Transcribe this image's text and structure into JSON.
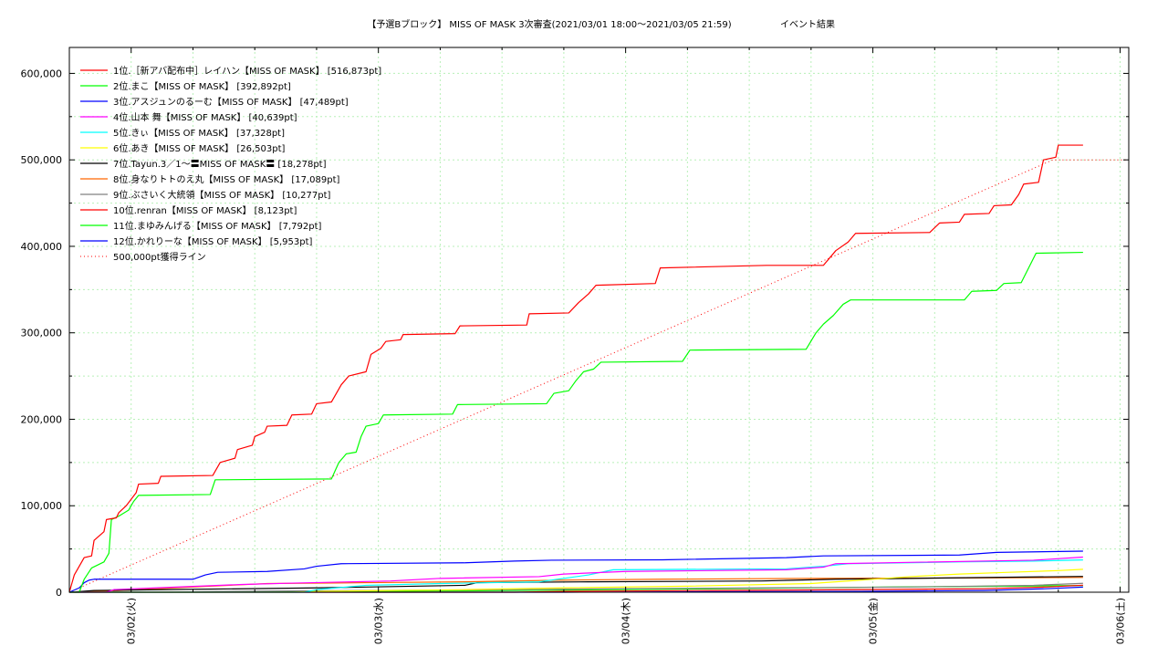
{
  "chart_data": {
    "type": "line",
    "title": "【予選Bブロック】 MISS OF MASK 3次審査(2021/03/01 18:00〜2021/03/05 21:59)",
    "subtitle": "イベント結果",
    "xlabel": "",
    "ylabel": "",
    "x_tick_labels": [
      "03/02(火)",
      "03/03(水)",
      "03/04(木)",
      "03/05(金)",
      "03/06(土)"
    ],
    "x_ticks_days": [
      0.25,
      1.25,
      2.25,
      3.25,
      4.25
    ],
    "xlim_days": [
      0,
      4.285
    ],
    "y_ticks": [
      0,
      100000,
      200000,
      300000,
      400000,
      500000,
      600000
    ],
    "y_tick_labels": [
      "0",
      "100,000",
      "200,000",
      "300,000",
      "400,000",
      "500,000",
      "600,000"
    ],
    "ylim": [
      0,
      630000
    ],
    "grid": true,
    "legend_position": "top-left",
    "series": [
      {
        "name": "1位.［新アバ配布中］レイハン【MISS OF MASK】 [516,873pt]",
        "color": "#ff0000",
        "points": [
          [
            0,
            0
          ],
          [
            0.02,
            20000
          ],
          [
            0.05,
            35000
          ],
          [
            0.06,
            40000
          ],
          [
            0.09,
            42000
          ],
          [
            0.1,
            60000
          ],
          [
            0.14,
            70000
          ],
          [
            0.15,
            84000
          ],
          [
            0.19,
            86000
          ],
          [
            0.2,
            92000
          ],
          [
            0.23,
            100000
          ],
          [
            0.27,
            115000
          ],
          [
            0.28,
            125000
          ],
          [
            0.36,
            126000
          ],
          [
            0.37,
            134000
          ],
          [
            0.58,
            135000
          ],
          [
            0.61,
            150000
          ],
          [
            0.67,
            155000
          ],
          [
            0.68,
            165000
          ],
          [
            0.74,
            170000
          ],
          [
            0.75,
            180000
          ],
          [
            0.79,
            185000
          ],
          [
            0.8,
            192000
          ],
          [
            0.88,
            193000
          ],
          [
            0.9,
            205000
          ],
          [
            0.98,
            206000
          ],
          [
            1.0,
            218000
          ],
          [
            1.06,
            220000
          ],
          [
            1.1,
            240000
          ],
          [
            1.13,
            250000
          ],
          [
            1.2,
            255000
          ],
          [
            1.22,
            275000
          ],
          [
            1.26,
            282000
          ],
          [
            1.28,
            290000
          ],
          [
            1.34,
            292000
          ],
          [
            1.35,
            298000
          ],
          [
            1.56,
            299000
          ],
          [
            1.58,
            308000
          ],
          [
            1.85,
            309000
          ],
          [
            1.86,
            322000
          ],
          [
            2.02,
            323000
          ],
          [
            2.06,
            335000
          ],
          [
            2.1,
            345000
          ],
          [
            2.13,
            355000
          ],
          [
            2.37,
            357000
          ],
          [
            2.39,
            375000
          ],
          [
            2.82,
            378000
          ],
          [
            3.05,
            378000
          ],
          [
            3.1,
            395000
          ],
          [
            3.15,
            405000
          ],
          [
            3.18,
            415000
          ],
          [
            3.48,
            416000
          ],
          [
            3.52,
            427000
          ],
          [
            3.6,
            428000
          ],
          [
            3.62,
            437000
          ],
          [
            3.72,
            438000
          ],
          [
            3.74,
            447000
          ],
          [
            3.81,
            448000
          ],
          [
            3.84,
            460000
          ],
          [
            3.86,
            472000
          ],
          [
            3.92,
            474000
          ],
          [
            3.94,
            500000
          ],
          [
            3.99,
            503000
          ],
          [
            4.0,
            517000
          ],
          [
            4.1,
            517000
          ]
        ]
      },
      {
        "name": "2位.まこ【MISS OF MASK】 [392,892pt]",
        "color": "#00ff00",
        "points": [
          [
            0,
            0
          ],
          [
            0.04,
            0
          ],
          [
            0.06,
            15000
          ],
          [
            0.09,
            28000
          ],
          [
            0.14,
            35000
          ],
          [
            0.16,
            45000
          ],
          [
            0.17,
            84000
          ],
          [
            0.2,
            88000
          ],
          [
            0.24,
            95000
          ],
          [
            0.26,
            105000
          ],
          [
            0.28,
            112000
          ],
          [
            0.57,
            113000
          ],
          [
            0.59,
            130000
          ],
          [
            1.06,
            131000
          ],
          [
            1.09,
            150000
          ],
          [
            1.12,
            160000
          ],
          [
            1.16,
            162000
          ],
          [
            1.18,
            180000
          ],
          [
            1.2,
            192000
          ],
          [
            1.25,
            195000
          ],
          [
            1.27,
            205000
          ],
          [
            1.55,
            206000
          ],
          [
            1.57,
            217000
          ],
          [
            1.93,
            218000
          ],
          [
            1.96,
            230000
          ],
          [
            2.02,
            233000
          ],
          [
            2.05,
            245000
          ],
          [
            2.08,
            255000
          ],
          [
            2.12,
            258000
          ],
          [
            2.15,
            266000
          ],
          [
            2.48,
            267000
          ],
          [
            2.51,
            280000
          ],
          [
            2.98,
            281000
          ],
          [
            3.02,
            300000
          ],
          [
            3.05,
            310000
          ],
          [
            3.09,
            320000
          ],
          [
            3.13,
            333000
          ],
          [
            3.16,
            338000
          ],
          [
            3.62,
            338000
          ],
          [
            3.65,
            348000
          ],
          [
            3.75,
            349000
          ],
          [
            3.78,
            357000
          ],
          [
            3.85,
            358000
          ],
          [
            3.88,
            375000
          ],
          [
            3.91,
            392000
          ],
          [
            4.1,
            393000
          ]
        ]
      },
      {
        "name": "3位.アスジュンのるーむ【MISS OF MASK】 [47,489pt]",
        "color": "#0000ff",
        "points": [
          [
            0,
            0
          ],
          [
            0.04,
            5000
          ],
          [
            0.06,
            11000
          ],
          [
            0.08,
            14000
          ],
          [
            0.1,
            15000
          ],
          [
            0.5,
            15000
          ],
          [
            0.55,
            20000
          ],
          [
            0.6,
            23000
          ],
          [
            0.8,
            24000
          ],
          [
            0.95,
            27000
          ],
          [
            1.0,
            30000
          ],
          [
            1.1,
            33000
          ],
          [
            1.6,
            34000
          ],
          [
            1.8,
            36000
          ],
          [
            1.95,
            37000
          ],
          [
            2.4,
            37500
          ],
          [
            2.9,
            40000
          ],
          [
            3.05,
            42000
          ],
          [
            3.6,
            43000
          ],
          [
            3.75,
            46000
          ],
          [
            4.1,
            47500
          ]
        ]
      },
      {
        "name": "4位.山本 舞【MISS OF MASK】 [40,639pt]",
        "color": "#ff00ff",
        "points": [
          [
            0,
            0
          ],
          [
            0.15,
            0
          ],
          [
            0.18,
            3000
          ],
          [
            0.35,
            5000
          ],
          [
            0.7,
            9000
          ],
          [
            0.9,
            10500
          ],
          [
            1.3,
            13000
          ],
          [
            1.5,
            16000
          ],
          [
            1.9,
            18000
          ],
          [
            2.0,
            21000
          ],
          [
            2.25,
            24000
          ],
          [
            2.9,
            26000
          ],
          [
            3.05,
            29000
          ],
          [
            3.1,
            33000
          ],
          [
            3.9,
            37000
          ],
          [
            4.1,
            40600
          ]
        ]
      },
      {
        "name": "5位.きぃ【MISS OF MASK】 [37,328pt]",
        "color": "#00ffff",
        "points": [
          [
            0,
            0
          ],
          [
            0.95,
            0
          ],
          [
            1.0,
            3000
          ],
          [
            1.2,
            8000
          ],
          [
            1.5,
            10000
          ],
          [
            1.9,
            12000
          ],
          [
            2.1,
            20000
          ],
          [
            2.2,
            26000
          ],
          [
            2.9,
            27000
          ],
          [
            3.05,
            30000
          ],
          [
            3.15,
            33000
          ],
          [
            3.6,
            35000
          ],
          [
            3.9,
            36000
          ],
          [
            4.1,
            37300
          ]
        ]
      },
      {
        "name": "6位.あき【MISS OF MASK】 [26,503pt]",
        "color": "#ffff00",
        "points": [
          [
            0,
            0
          ],
          [
            0.9,
            0
          ],
          [
            1.0,
            1000
          ],
          [
            1.6,
            3000
          ],
          [
            2.0,
            5000
          ],
          [
            2.5,
            7000
          ],
          [
            3.0,
            10000
          ],
          [
            3.2,
            14000
          ],
          [
            3.4,
            18000
          ],
          [
            3.6,
            21000
          ],
          [
            3.8,
            23000
          ],
          [
            4.0,
            25000
          ],
          [
            4.1,
            26500
          ]
        ]
      },
      {
        "name": "7位.Tayun.3／1〜〓MISS OF MASK〓 [18,278pt]",
        "color": "#000000",
        "points": [
          [
            0,
            0
          ],
          [
            0.05,
            1000
          ],
          [
            0.1,
            2000
          ],
          [
            0.4,
            3000
          ],
          [
            1.0,
            5000
          ],
          [
            1.6,
            8000
          ],
          [
            1.65,
            11000
          ],
          [
            2.1,
            12000
          ],
          [
            2.8,
            13000
          ],
          [
            3.1,
            15000
          ],
          [
            3.4,
            16000
          ],
          [
            3.7,
            17000
          ],
          [
            4.1,
            18278
          ]
        ]
      },
      {
        "name": "8位.身なりトトのえ丸【MISS OF MASK】 [17,089pt]",
        "color": "#ff6600",
        "points": [
          [
            0,
            0
          ],
          [
            0.2,
            2000
          ],
          [
            0.5,
            6000
          ],
          [
            0.8,
            10000
          ],
          [
            1.2,
            11000
          ],
          [
            1.6,
            12000
          ],
          [
            2.0,
            14000
          ],
          [
            2.4,
            15000
          ],
          [
            3.0,
            16000
          ],
          [
            3.6,
            16500
          ],
          [
            4.1,
            17089
          ]
        ]
      },
      {
        "name": "9位.ぶさいく大統領【MISS OF MASK】 [10,277pt]",
        "color": "#808080",
        "points": [
          [
            0,
            0
          ],
          [
            0.4,
            0
          ],
          [
            0.6,
            1000
          ],
          [
            1.2,
            2000
          ],
          [
            1.8,
            3000
          ],
          [
            2.2,
            4000
          ],
          [
            2.8,
            5000
          ],
          [
            3.4,
            6000
          ],
          [
            3.9,
            8000
          ],
          [
            4.1,
            10277
          ]
        ]
      },
      {
        "name": "10位.renran【MISS OF MASK】 [8,123pt]",
        "color": "#ff0000",
        "points": [
          [
            0,
            0
          ],
          [
            1.8,
            0
          ],
          [
            2.0,
            1000
          ],
          [
            2.6,
            2000
          ],
          [
            3.2,
            3000
          ],
          [
            3.7,
            4000
          ],
          [
            3.95,
            6000
          ],
          [
            4.1,
            8123
          ]
        ]
      },
      {
        "name": "11位.まゆみんげる【MISS OF MASK】 [7,792pt]",
        "color": "#00ff00",
        "points": [
          [
            0,
            0
          ],
          [
            0.5,
            0
          ],
          [
            1.0,
            500
          ],
          [
            1.6,
            1500
          ],
          [
            2.2,
            3000
          ],
          [
            2.8,
            4500
          ],
          [
            3.3,
            6000
          ],
          [
            3.8,
            7000
          ],
          [
            4.1,
            7792
          ]
        ]
      },
      {
        "name": "12位.かれりーな【MISS OF MASK】 [5,953pt]",
        "color": "#0000ff",
        "points": [
          [
            0,
            0
          ],
          [
            2.0,
            0
          ],
          [
            2.6,
            500
          ],
          [
            3.2,
            1000
          ],
          [
            3.7,
            2000
          ],
          [
            3.95,
            4000
          ],
          [
            4.1,
            5953
          ]
        ]
      }
    ],
    "target_line": {
      "name": "500,000pt獲得ライン",
      "color": "#ff0000",
      "style": "dotted",
      "points": [
        [
          0,
          0
        ],
        [
          3.978,
          500000
        ],
        [
          4.285,
          500000
        ]
      ]
    }
  }
}
